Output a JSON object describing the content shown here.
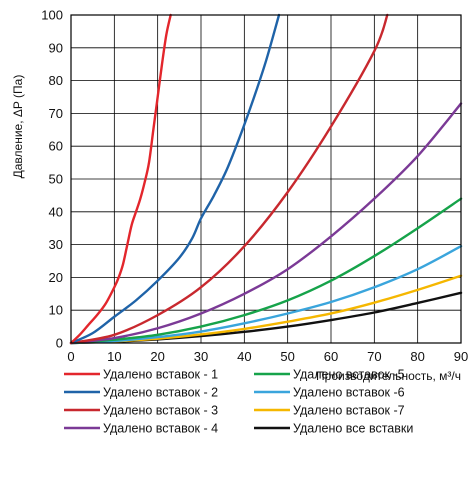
{
  "chart_data": {
    "type": "line",
    "title": "",
    "xlabel": "Производительность, м³/ч",
    "ylabel": "Давление, ΔP (Па)",
    "xlim": [
      0,
      90
    ],
    "ylim": [
      0,
      100
    ],
    "x_ticks": [
      "0",
      "10",
      "20",
      "30",
      "40",
      "50",
      "60",
      "70",
      "80",
      "90"
    ],
    "y_ticks": [
      "0",
      "10",
      "20",
      "30",
      "40",
      "50",
      "60",
      "70",
      "80",
      "90",
      "100"
    ],
    "grid": true,
    "legend_position": "bottom",
    "series": [
      {
        "name": "Удалено вставок - 1",
        "color": "#e3262c",
        "points": [
          [
            0,
            0
          ],
          [
            2,
            2.5
          ],
          [
            4,
            5.5
          ],
          [
            6,
            8.5
          ],
          [
            8,
            12
          ],
          [
            10,
            17
          ],
          [
            11,
            20
          ],
          [
            12,
            24
          ],
          [
            13,
            30
          ],
          [
            14,
            36
          ],
          [
            15,
            40
          ],
          [
            16,
            44
          ],
          [
            17,
            49
          ],
          [
            18,
            55
          ],
          [
            19,
            65
          ],
          [
            20,
            75
          ],
          [
            21,
            85
          ],
          [
            22,
            94
          ],
          [
            23,
            100
          ]
        ]
      },
      {
        "name": "Удалено вставок - 2",
        "color": "#1f63a8",
        "points": [
          [
            0,
            0
          ],
          [
            5,
            3
          ],
          [
            10,
            8
          ],
          [
            15,
            13
          ],
          [
            20,
            19
          ],
          [
            25,
            26
          ],
          [
            28,
            32
          ],
          [
            30,
            38
          ],
          [
            33,
            45
          ],
          [
            36,
            53
          ],
          [
            39,
            63
          ],
          [
            42,
            74
          ],
          [
            45,
            86
          ],
          [
            48,
            100
          ]
        ]
      },
      {
        "name": "Удалено вставок - 3",
        "color": "#c8282e",
        "points": [
          [
            0,
            0
          ],
          [
            10,
            2.5
          ],
          [
            20,
            8.5
          ],
          [
            30,
            17
          ],
          [
            40,
            29.5
          ],
          [
            50,
            46
          ],
          [
            60,
            66
          ],
          [
            70,
            89
          ],
          [
            73,
            100
          ]
        ]
      },
      {
        "name": "Удалено вставок - 4",
        "color": "#7b3a96",
        "points": [
          [
            0,
            0
          ],
          [
            10,
            1.5
          ],
          [
            20,
            4.5
          ],
          [
            30,
            9
          ],
          [
            40,
            15
          ],
          [
            50,
            22.5
          ],
          [
            60,
            32.5
          ],
          [
            70,
            44
          ],
          [
            80,
            57
          ],
          [
            90,
            73
          ]
        ]
      },
      {
        "name": "Удалено вставок -5",
        "color": "#16a34a",
        "points": [
          [
            0,
            0
          ],
          [
            10,
            1
          ],
          [
            20,
            2.5
          ],
          [
            30,
            5
          ],
          [
            40,
            8.5
          ],
          [
            50,
            13
          ],
          [
            60,
            19
          ],
          [
            70,
            26.5
          ],
          [
            80,
            35
          ],
          [
            90,
            44
          ]
        ]
      },
      {
        "name": "Удалено вставок -6",
        "color": "#3aa5dc",
        "points": [
          [
            0,
            0
          ],
          [
            10,
            0.6
          ],
          [
            20,
            1.8
          ],
          [
            30,
            3.5
          ],
          [
            40,
            6
          ],
          [
            50,
            9
          ],
          [
            60,
            12.5
          ],
          [
            70,
            17
          ],
          [
            80,
            22.5
          ],
          [
            90,
            29.5
          ]
        ]
      },
      {
        "name": "Удалено вставок -7",
        "color": "#f5b700",
        "points": [
          [
            0,
            0
          ],
          [
            10,
            0.5
          ],
          [
            20,
            1.3
          ],
          [
            30,
            2.6
          ],
          [
            40,
            4.3
          ],
          [
            50,
            6.5
          ],
          [
            60,
            9
          ],
          [
            70,
            12.3
          ],
          [
            80,
            16.2
          ],
          [
            90,
            20.5
          ]
        ]
      },
      {
        "name": "Удалено все вставки",
        "color": "#111111",
        "points": [
          [
            0,
            0
          ],
          [
            10,
            0.4
          ],
          [
            20,
            1.1
          ],
          [
            30,
            2.1
          ],
          [
            40,
            3.4
          ],
          [
            50,
            5
          ],
          [
            60,
            7
          ],
          [
            70,
            9.3
          ],
          [
            80,
            12.2
          ],
          [
            90,
            15.3
          ]
        ]
      }
    ]
  }
}
